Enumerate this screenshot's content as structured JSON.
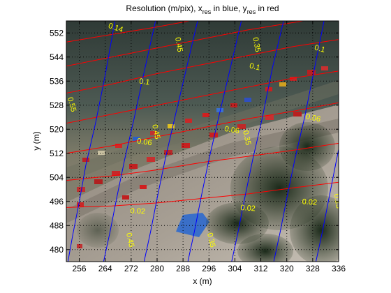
{
  "chart_data": {
    "type": "line",
    "title": "Resolution (m/pix), x",
    "title_sub1": "res",
    "title_mid": " in blue, y",
    "title_sub2": "res",
    "title_end": " in red",
    "xlabel": "x (m)",
    "ylabel": "y (m)",
    "xlim": [
      252,
      336
    ],
    "ylim": [
      476,
      556
    ],
    "xticks": [
      256,
      264,
      272,
      280,
      288,
      296,
      304,
      312,
      320,
      328,
      336
    ],
    "yticks": [
      480,
      488,
      496,
      504,
      512,
      520,
      528,
      536,
      544,
      552
    ],
    "grid": "dotted",
    "background": "aerial beach photograph",
    "series": [
      {
        "color": "#ff0000",
        "lines": [
          [
            [
              252,
              494
            ],
            [
              266,
              494.5
            ],
            [
              280,
              495.5
            ],
            [
              294,
              497
            ],
            [
              308,
              498.5
            ],
            [
              322,
              500.5
            ],
            [
              337,
              502.5
            ]
          ],
          [
            [
              252,
              503
            ],
            [
              266,
              504.5
            ],
            [
              280,
              506.5
            ],
            [
              294,
              509
            ],
            [
              308,
              511
            ],
            [
              322,
              513
            ],
            [
              337,
              515.5
            ]
          ],
          [
            [
              252,
              512
            ],
            [
              266,
              514.5
            ],
            [
              280,
              517.5
            ],
            [
              294,
              520.5
            ],
            [
              308,
              523.5
            ],
            [
              322,
              526
            ],
            [
              337,
              529
            ]
          ],
          [
            [
              252,
              522
            ],
            [
              266,
              525
            ],
            [
              280,
              528
            ],
            [
              294,
              531
            ],
            [
              308,
              534
            ],
            [
              322,
              537
            ],
            [
              337,
              539.5
            ]
          ],
          [
            [
              252,
              532
            ],
            [
              266,
              535
            ],
            [
              280,
              538.5
            ],
            [
              294,
              541.5
            ],
            [
              308,
              544.5
            ],
            [
              322,
              547.5
            ],
            [
              337,
              550
            ]
          ],
          [
            [
              252,
              541
            ],
            [
              266,
              544
            ],
            [
              280,
              547
            ],
            [
              294,
              550
            ],
            [
              308,
              553
            ],
            [
              322,
              555.5
            ],
            [
              331,
              557
            ]
          ],
          [
            [
              252,
              549
            ],
            [
              266,
              551.5
            ],
            [
              280,
              554
            ],
            [
              290,
              556
            ]
          ]
        ]
      },
      {
        "color": "#0000ff",
        "lines": [
          [
            [
              252.5,
              476
            ],
            [
              254,
              485
            ],
            [
              256,
              496
            ],
            [
              258,
              508
            ],
            [
              261,
              522
            ],
            [
              264,
              538
            ],
            [
              267,
              556
            ]
          ],
          [
            [
              263.5,
              476
            ],
            [
              265.5,
              486
            ],
            [
              267.5,
              497
            ],
            [
              270,
              510
            ],
            [
              273,
              524
            ],
            [
              276,
              539
            ],
            [
              279.5,
              556
            ]
          ],
          [
            [
              276,
              476
            ],
            [
              278,
              486
            ],
            [
              280,
              497
            ],
            [
              282.5,
              510
            ],
            [
              285.5,
              524
            ],
            [
              289,
              540
            ],
            [
              292.5,
              556
            ]
          ],
          [
            [
              289.5,
              476
            ],
            [
              291.5,
              486
            ],
            [
              293.5,
              497
            ],
            [
              296,
              510
            ],
            [
              299,
              524
            ],
            [
              302.5,
              540
            ],
            [
              306,
              556
            ]
          ],
          [
            [
              303,
              476
            ],
            [
              305,
              486
            ],
            [
              307,
              497
            ],
            [
              309.5,
              510
            ],
            [
              312.5,
              524
            ],
            [
              315.5,
              540
            ],
            [
              319,
              556
            ]
          ],
          [
            [
              316,
              476
            ],
            [
              318,
              486
            ],
            [
              320,
              497
            ],
            [
              322.5,
              510
            ],
            [
              325.5,
              524
            ],
            [
              328.5,
              540
            ],
            [
              331.5,
              556
            ]
          ],
          [
            [
              329,
              476
            ],
            [
              331,
              486
            ],
            [
              333,
              497
            ],
            [
              335,
              508
            ],
            [
              336.5,
              516
            ]
          ]
        ]
      }
    ],
    "contour_labels": [
      {
        "text": "0.14",
        "x": 267,
        "y": 553,
        "rot": 18
      },
      {
        "text": "0.45",
        "x": 286,
        "y": 548,
        "rot": 80
      },
      {
        "text": "0.35",
        "x": 310,
        "y": 548,
        "rot": 80
      },
      {
        "text": "0.1",
        "x": 330,
        "y": 546,
        "rot": 15
      },
      {
        "text": "0.1",
        "x": 310,
        "y": 540,
        "rot": 12
      },
      {
        "text": "0.1",
        "x": 276,
        "y": 535,
        "rot": 8
      },
      {
        "text": "0.55",
        "x": 253,
        "y": 528,
        "rot": 75
      },
      {
        "text": "0.06",
        "x": 328,
        "y": 523,
        "rot": 12
      },
      {
        "text": "0.06",
        "x": 303,
        "y": 519,
        "rot": 10
      },
      {
        "text": "0.35",
        "x": 307,
        "y": 517,
        "rot": 78
      },
      {
        "text": "0.45",
        "x": 279,
        "y": 519,
        "rot": 78
      },
      {
        "text": "0.06",
        "x": 276,
        "y": 515,
        "rot": 8
      },
      {
        "text": "0.25",
        "x": 335,
        "y": 496,
        "rot": 80
      },
      {
        "text": "0.02",
        "x": 308,
        "y": 493,
        "rot": 4
      },
      {
        "text": "0.02",
        "x": 327,
        "y": 495,
        "rot": 4
      },
      {
        "text": "0.02",
        "x": 274,
        "y": 492,
        "rot": 3
      },
      {
        "text": "0.45",
        "x": 271,
        "y": 483,
        "rot": 78
      },
      {
        "text": "0.35",
        "x": 296,
        "y": 483,
        "rot": 78
      }
    ]
  }
}
